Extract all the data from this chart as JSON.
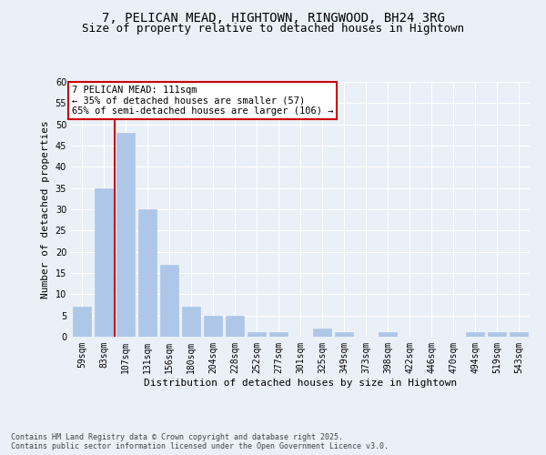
{
  "title_line1": "7, PELICAN MEAD, HIGHTOWN, RINGWOOD, BH24 3RG",
  "title_line2": "Size of property relative to detached houses in Hightown",
  "xlabel": "Distribution of detached houses by size in Hightown",
  "ylabel": "Number of detached properties",
  "categories": [
    "59sqm",
    "83sqm",
    "107sqm",
    "131sqm",
    "156sqm",
    "180sqm",
    "204sqm",
    "228sqm",
    "252sqm",
    "277sqm",
    "301sqm",
    "325sqm",
    "349sqm",
    "373sqm",
    "398sqm",
    "422sqm",
    "446sqm",
    "470sqm",
    "494sqm",
    "519sqm",
    "543sqm"
  ],
  "values": [
    7,
    35,
    48,
    30,
    17,
    7,
    5,
    5,
    1,
    1,
    0,
    2,
    1,
    0,
    1,
    0,
    0,
    0,
    1,
    1,
    1
  ],
  "bar_color": "#aec6e8",
  "bar_edgecolor": "#aec6e8",
  "highlight_color": "#cc0000",
  "ylim": [
    0,
    60
  ],
  "yticks": [
    0,
    5,
    10,
    15,
    20,
    25,
    30,
    35,
    40,
    45,
    50,
    55,
    60
  ],
  "bg_color": "#eaf0f8",
  "plot_bg_color": "#eaf0f8",
  "annotation_text": "7 PELICAN MEAD: 111sqm\n← 35% of detached houses are smaller (57)\n65% of semi-detached houses are larger (106) →",
  "footer": "Contains HM Land Registry data © Crown copyright and database right 2025.\nContains public sector information licensed under the Open Government Licence v3.0.",
  "title_fontsize": 10,
  "subtitle_fontsize": 9,
  "axis_label_fontsize": 8,
  "tick_fontsize": 7,
  "annotation_fontsize": 7.5,
  "footer_fontsize": 6
}
